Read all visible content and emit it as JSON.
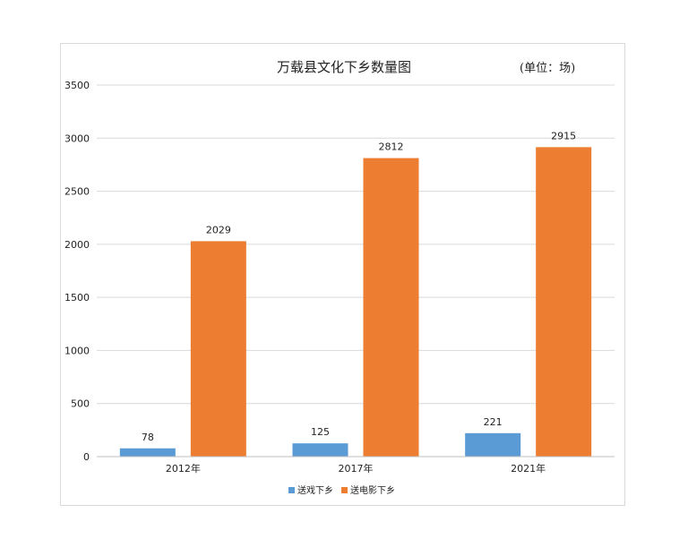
{
  "chart_data": {
    "type": "bar",
    "title": "万载县文化下乡数量图",
    "unit_note": "(单位：场)",
    "categories": [
      "2012年",
      "2017年",
      "2021年"
    ],
    "series": [
      {
        "name": "送戏下乡",
        "values": [
          78,
          125,
          221
        ],
        "color": "#5b9bd5"
      },
      {
        "name": "送电影下乡",
        "values": [
          2029,
          2812,
          2915
        ],
        "color": "#ed7d31"
      }
    ],
    "ylim": [
      0,
      3500
    ],
    "yticks": [
      0,
      500,
      1000,
      1500,
      2000,
      2500,
      3000,
      3500
    ],
    "grid": true,
    "legend_position": "bottom"
  }
}
